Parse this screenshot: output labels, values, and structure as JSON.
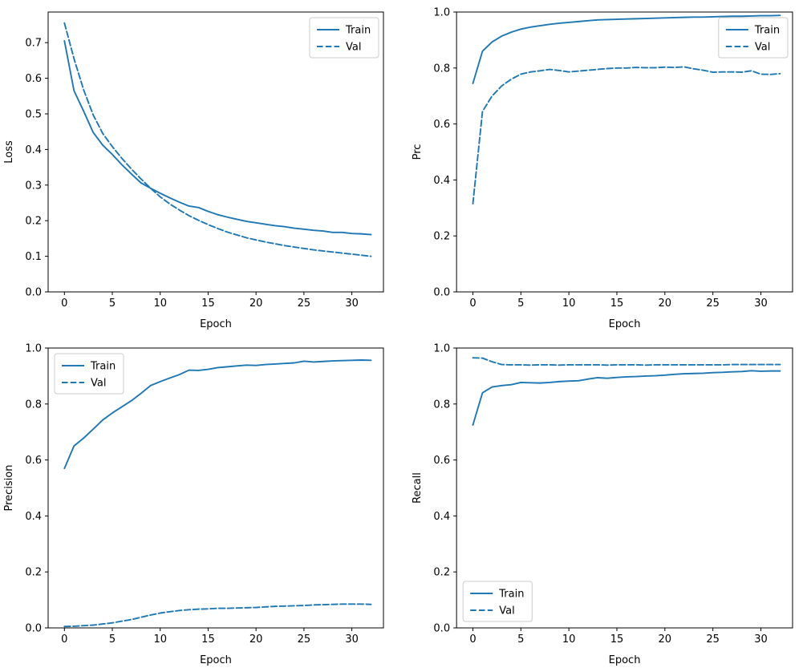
{
  "figure": {
    "background": "#ffffff",
    "line_color": "#1f77b4",
    "text_color": "#000000",
    "legend_border_color": "#cccccc",
    "legend_labels": [
      "Train",
      "Val"
    ]
  },
  "chart_data": [
    {
      "id": "loss",
      "type": "line",
      "title": "",
      "xlabel": "Epoch",
      "ylabel": "Loss",
      "xlim": [
        -1.7,
        33.3
      ],
      "ylim": [
        0,
        0.786
      ],
      "grid": false,
      "xtick_values": [
        0,
        5,
        10,
        15,
        20,
        25,
        30
      ],
      "xtick_labels": [
        "0",
        "5",
        "10",
        "15",
        "20",
        "25",
        "30"
      ],
      "ytick_values": [
        0.0,
        0.1,
        0.2,
        0.3,
        0.4,
        0.5,
        0.6,
        0.7
      ],
      "ytick_labels": [
        "0.0",
        "0.1",
        "0.2",
        "0.3",
        "0.4",
        "0.5",
        "0.6",
        "0.7"
      ],
      "legend_position": "upper-right",
      "x": [
        0,
        1,
        2,
        3,
        4,
        5,
        6,
        7,
        8,
        9,
        10,
        11,
        12,
        13,
        14,
        15,
        16,
        17,
        18,
        19,
        20,
        21,
        22,
        23,
        24,
        25,
        26,
        27,
        28,
        29,
        30,
        31,
        32
      ],
      "series": [
        {
          "name": "Train",
          "style": "solid",
          "color": "#1f77b4",
          "values": [
            0.705,
            0.565,
            0.508,
            0.448,
            0.412,
            0.386,
            0.357,
            0.331,
            0.306,
            0.291,
            0.277,
            0.264,
            0.252,
            0.241,
            0.237,
            0.226,
            0.217,
            0.21,
            0.204,
            0.198,
            0.194,
            0.19,
            0.186,
            0.183,
            0.179,
            0.176,
            0.173,
            0.171,
            0.167,
            0.167,
            0.164,
            0.163,
            0.161
          ]
        },
        {
          "name": "Val",
          "style": "dashed",
          "color": "#1f77b4",
          "values": [
            0.755,
            0.655,
            0.568,
            0.497,
            0.445,
            0.408,
            0.375,
            0.345,
            0.317,
            0.291,
            0.267,
            0.247,
            0.23,
            0.214,
            0.201,
            0.189,
            0.178,
            0.168,
            0.16,
            0.152,
            0.146,
            0.14,
            0.135,
            0.13,
            0.126,
            0.122,
            0.118,
            0.115,
            0.112,
            0.109,
            0.106,
            0.103,
            0.1
          ]
        }
      ]
    },
    {
      "id": "prc",
      "type": "line",
      "title": "",
      "xlabel": "Epoch",
      "ylabel": "Prc",
      "xlim": [
        -1.7,
        33.3
      ],
      "ylim": [
        0,
        1.0
      ],
      "grid": false,
      "xtick_values": [
        0,
        5,
        10,
        15,
        20,
        25,
        30
      ],
      "xtick_labels": [
        "0",
        "5",
        "10",
        "15",
        "20",
        "25",
        "30"
      ],
      "ytick_values": [
        0.0,
        0.2,
        0.4,
        0.6,
        0.8,
        1.0
      ],
      "ytick_labels": [
        "0.0",
        "0.2",
        "0.4",
        "0.6",
        "0.8",
        "1.0"
      ],
      "legend_position": "upper-right",
      "x": [
        0,
        1,
        2,
        3,
        4,
        5,
        6,
        7,
        8,
        9,
        10,
        11,
        12,
        13,
        14,
        15,
        16,
        17,
        18,
        19,
        20,
        21,
        22,
        23,
        24,
        25,
        26,
        27,
        28,
        29,
        30,
        31,
        32
      ],
      "series": [
        {
          "name": "Train",
          "style": "solid",
          "color": "#1f77b4",
          "values": [
            0.745,
            0.86,
            0.893,
            0.914,
            0.928,
            0.939,
            0.946,
            0.951,
            0.956,
            0.96,
            0.963,
            0.966,
            0.969,
            0.972,
            0.973,
            0.974,
            0.975,
            0.976,
            0.977,
            0.978,
            0.979,
            0.98,
            0.981,
            0.982,
            0.982,
            0.983,
            0.984,
            0.985,
            0.985,
            0.986,
            0.987,
            0.987,
            0.988
          ]
        },
        {
          "name": "Val",
          "style": "dashed",
          "color": "#1f77b4",
          "values": [
            0.315,
            0.645,
            0.7,
            0.736,
            0.76,
            0.778,
            0.786,
            0.79,
            0.795,
            0.791,
            0.786,
            0.789,
            0.792,
            0.795,
            0.798,
            0.8,
            0.8,
            0.802,
            0.801,
            0.801,
            0.803,
            0.802,
            0.804,
            0.797,
            0.792,
            0.785,
            0.786,
            0.786,
            0.785,
            0.79,
            0.778,
            0.777,
            0.78
          ]
        }
      ]
    },
    {
      "id": "precision",
      "type": "line",
      "title": "",
      "xlabel": "Epoch",
      "ylabel": "Precision",
      "xlim": [
        -1.7,
        33.3
      ],
      "ylim": [
        0,
        1.0
      ],
      "grid": false,
      "xtick_values": [
        0,
        5,
        10,
        15,
        20,
        25,
        30
      ],
      "xtick_labels": [
        "0",
        "5",
        "10",
        "15",
        "20",
        "25",
        "30"
      ],
      "ytick_values": [
        0.0,
        0.2,
        0.4,
        0.6,
        0.8,
        1.0
      ],
      "ytick_labels": [
        "0.0",
        "0.2",
        "0.4",
        "0.6",
        "0.8",
        "1.0"
      ],
      "legend_position": "upper-left",
      "x": [
        0,
        1,
        2,
        3,
        4,
        5,
        6,
        7,
        8,
        9,
        10,
        11,
        12,
        13,
        14,
        15,
        16,
        17,
        18,
        19,
        20,
        21,
        22,
        23,
        24,
        25,
        26,
        27,
        28,
        29,
        30,
        31,
        32
      ],
      "series": [
        {
          "name": "Train",
          "style": "solid",
          "color": "#1f77b4",
          "values": [
            0.57,
            0.65,
            0.678,
            0.71,
            0.743,
            0.768,
            0.79,
            0.812,
            0.838,
            0.866,
            0.88,
            0.893,
            0.905,
            0.921,
            0.92,
            0.924,
            0.93,
            0.933,
            0.936,
            0.939,
            0.938,
            0.941,
            0.943,
            0.945,
            0.947,
            0.953,
            0.95,
            0.952,
            0.954,
            0.955,
            0.956,
            0.957,
            0.956
          ]
        },
        {
          "name": "Val",
          "style": "dashed",
          "color": "#1f77b4",
          "values": [
            0.005,
            0.006,
            0.008,
            0.01,
            0.014,
            0.018,
            0.024,
            0.03,
            0.038,
            0.046,
            0.053,
            0.058,
            0.062,
            0.065,
            0.067,
            0.068,
            0.07,
            0.07,
            0.071,
            0.072,
            0.073,
            0.075,
            0.077,
            0.078,
            0.079,
            0.08,
            0.082,
            0.083,
            0.084,
            0.085,
            0.085,
            0.085,
            0.084
          ]
        }
      ]
    },
    {
      "id": "recall",
      "type": "line",
      "title": "",
      "xlabel": "Epoch",
      "ylabel": "Recall",
      "xlim": [
        -1.7,
        33.3
      ],
      "ylim": [
        0,
        1.0
      ],
      "grid": false,
      "xtick_values": [
        0,
        5,
        10,
        15,
        20,
        25,
        30
      ],
      "xtick_labels": [
        "0",
        "5",
        "10",
        "15",
        "20",
        "25",
        "30"
      ],
      "ytick_values": [
        0.0,
        0.2,
        0.4,
        0.6,
        0.8,
        1.0
      ],
      "ytick_labels": [
        "0.0",
        "0.2",
        "0.4",
        "0.6",
        "0.8",
        "1.0"
      ],
      "legend_position": "lower-left",
      "x": [
        0,
        1,
        2,
        3,
        4,
        5,
        6,
        7,
        8,
        9,
        10,
        11,
        12,
        13,
        14,
        15,
        16,
        17,
        18,
        19,
        20,
        21,
        22,
        23,
        24,
        25,
        26,
        27,
        28,
        29,
        30,
        31,
        32
      ],
      "series": [
        {
          "name": "Train",
          "style": "solid",
          "color": "#1f77b4",
          "values": [
            0.725,
            0.84,
            0.861,
            0.866,
            0.869,
            0.877,
            0.876,
            0.875,
            0.877,
            0.88,
            0.882,
            0.883,
            0.889,
            0.894,
            0.892,
            0.895,
            0.897,
            0.898,
            0.9,
            0.901,
            0.903,
            0.906,
            0.908,
            0.909,
            0.91,
            0.912,
            0.913,
            0.915,
            0.916,
            0.919,
            0.917,
            0.918,
            0.918
          ]
        },
        {
          "name": "Val",
          "style": "dashed",
          "color": "#1f77b4",
          "values": [
            0.965,
            0.964,
            0.951,
            0.941,
            0.94,
            0.94,
            0.939,
            0.94,
            0.94,
            0.939,
            0.94,
            0.94,
            0.94,
            0.94,
            0.939,
            0.94,
            0.94,
            0.94,
            0.939,
            0.94,
            0.94,
            0.94,
            0.94,
            0.94,
            0.94,
            0.94,
            0.94,
            0.941,
            0.941,
            0.941,
            0.941,
            0.941,
            0.941
          ]
        }
      ]
    }
  ]
}
